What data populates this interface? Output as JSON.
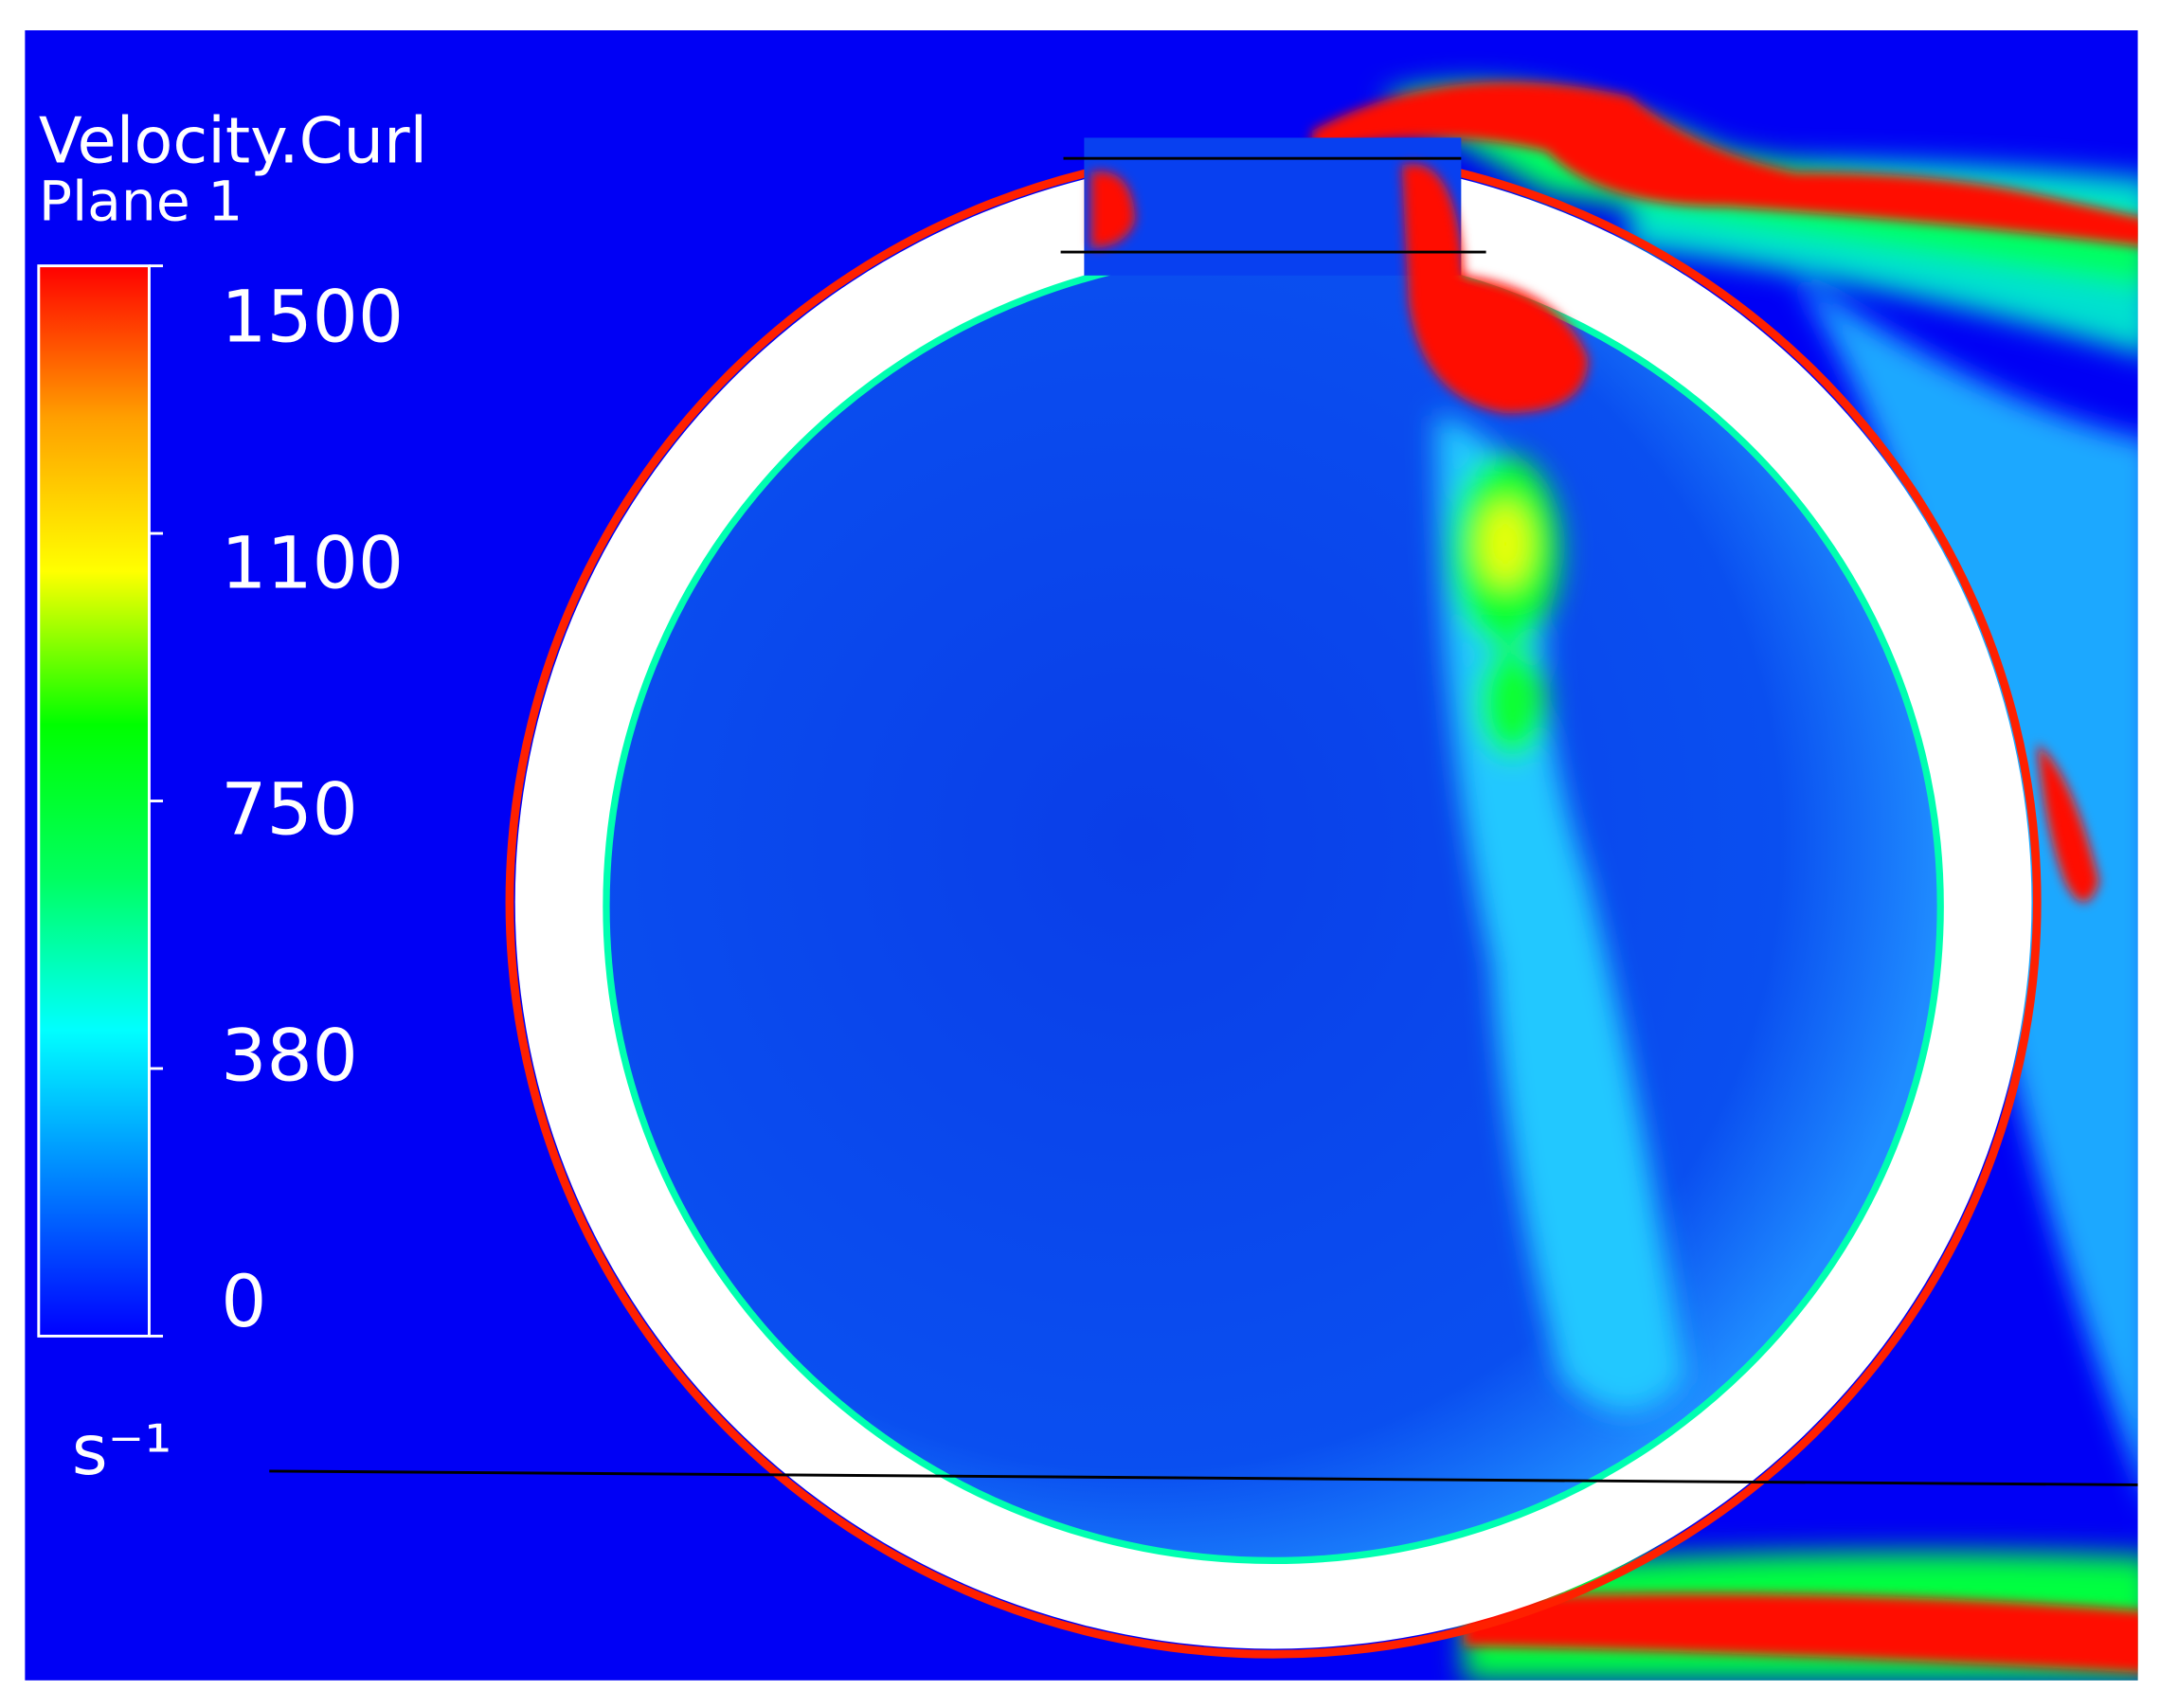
{
  "chart_data": {
    "type": "contour",
    "title": "Velocity.Curl",
    "subtitle": "Plane 1",
    "unit": "s⁻¹",
    "colorbar_ticks": [
      1500,
      1100,
      750,
      380,
      0
    ],
    "colormap": [
      "#0000ff",
      "#0080ff",
      "#00ffff",
      "#00ff60",
      "#00ff00",
      "#ffff00",
      "#ffa000",
      "#ff0000"
    ]
  }
}
